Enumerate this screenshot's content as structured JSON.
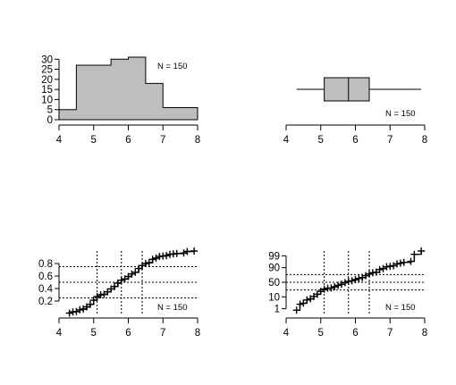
{
  "chart_data": [
    {
      "type": "histogram",
      "panel": "histogram",
      "bins": [
        [
          4.0,
          4.5
        ],
        [
          4.5,
          5.0
        ],
        [
          5.0,
          5.5
        ],
        [
          5.5,
          6.0
        ],
        [
          6.0,
          6.5
        ],
        [
          6.5,
          7.0
        ],
        [
          7.0,
          7.5
        ],
        [
          7.5,
          8.0
        ]
      ],
      "values": [
        5,
        27,
        27,
        30,
        31,
        18,
        6,
        6
      ],
      "xlim": [
        4,
        8
      ],
      "ylim": [
        0,
        31
      ],
      "xticks": [
        4,
        5,
        6,
        7,
        8
      ],
      "yticks": [
        0,
        5,
        10,
        15,
        20,
        25,
        30
      ],
      "fill_color": "#bebebe",
      "annotation": "N = 150"
    },
    {
      "type": "boxplot",
      "panel": "boxplot",
      "orientation": "horizontal",
      "min": 4.3,
      "q1": 5.1,
      "median": 5.8,
      "q3": 6.4,
      "max": 7.9,
      "xlim": [
        4,
        8
      ],
      "xticks": [
        4,
        5,
        6,
        7,
        8
      ],
      "fill_color": "#bebebe",
      "annotation": "N = 150"
    },
    {
      "type": "ecdf",
      "panel": "ecdf",
      "x": [
        4.3,
        4.4,
        4.5,
        4.6,
        4.7,
        4.8,
        4.9,
        5.0,
        5.1,
        5.2,
        5.3,
        5.4,
        5.5,
        5.6,
        5.7,
        5.8,
        5.9,
        6.0,
        6.1,
        6.2,
        6.3,
        6.4,
        6.5,
        6.6,
        6.7,
        6.8,
        6.9,
        7.0,
        7.1,
        7.2,
        7.3,
        7.4,
        7.6,
        7.7,
        7.9
      ],
      "y": [
        0.007,
        0.027,
        0.033,
        0.06,
        0.073,
        0.107,
        0.147,
        0.213,
        0.273,
        0.3,
        0.307,
        0.347,
        0.393,
        0.433,
        0.487,
        0.533,
        0.553,
        0.593,
        0.633,
        0.66,
        0.72,
        0.767,
        0.8,
        0.813,
        0.867,
        0.887,
        0.913,
        0.92,
        0.927,
        0.947,
        0.953,
        0.96,
        0.967,
        0.993,
        1.0
      ],
      "xlim": [
        4,
        8
      ],
      "ylim": [
        0,
        1
      ],
      "xticks": [
        4,
        5,
        6,
        7,
        8
      ],
      "yticks": [
        0.2,
        0.4,
        0.6,
        0.8
      ],
      "hlines": [
        0.25,
        0.5,
        0.75
      ],
      "vlines": [
        5.1,
        5.8,
        6.4
      ],
      "annotation": "N = 150"
    },
    {
      "type": "probability",
      "panel": "qq",
      "x": [
        4.3,
        4.4,
        4.5,
        4.6,
        4.7,
        4.8,
        4.9,
        5.0,
        5.1,
        5.2,
        5.3,
        5.4,
        5.5,
        5.6,
        5.7,
        5.8,
        5.9,
        6.0,
        6.1,
        6.2,
        6.3,
        6.4,
        6.5,
        6.6,
        6.7,
        6.8,
        6.9,
        7.0,
        7.1,
        7.2,
        7.3,
        7.4,
        7.6,
        7.7,
        7.9
      ],
      "percent": [
        0.7,
        2.7,
        3.3,
        6.0,
        7.3,
        10.7,
        14.7,
        21.3,
        27.3,
        30.0,
        30.7,
        34.7,
        39.3,
        43.3,
        48.7,
        53.3,
        55.3,
        59.3,
        63.3,
        66.0,
        72.0,
        76.7,
        80.0,
        81.3,
        86.7,
        88.7,
        91.3,
        92.0,
        92.7,
        94.7,
        95.3,
        96.0,
        96.7,
        99.3,
        99.7
      ],
      "xlim": [
        4,
        8
      ],
      "xticks": [
        4,
        5,
        6,
        7,
        8
      ],
      "yticks": [
        1,
        10,
        50,
        90,
        99
      ],
      "hlines": [
        25,
        50,
        75
      ],
      "vlines": [
        5.1,
        5.8,
        6.4
      ],
      "annotation": "N = 150"
    }
  ]
}
